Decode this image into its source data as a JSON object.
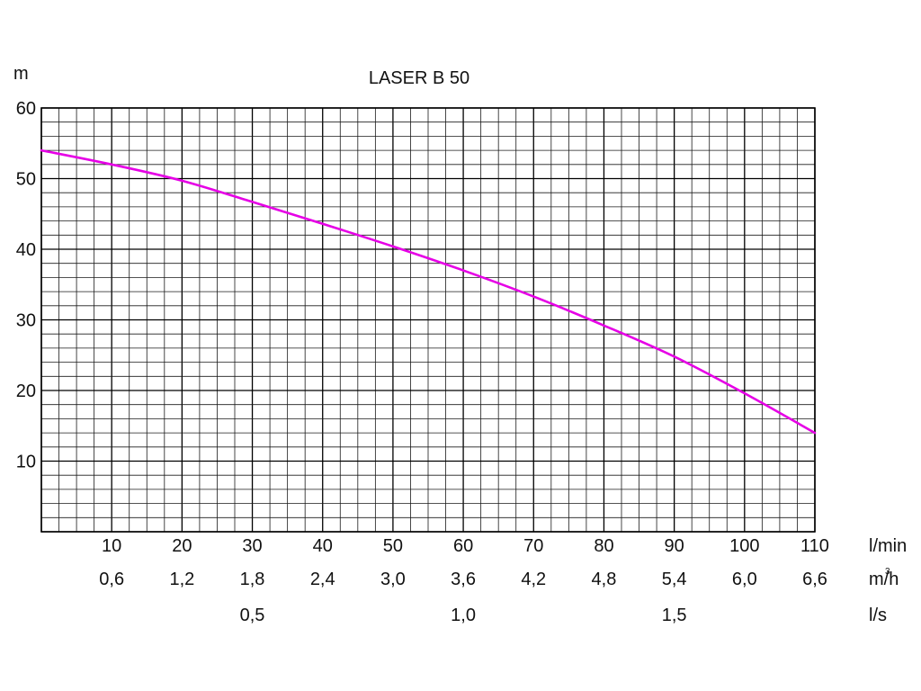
{
  "chart_data": {
    "type": "line",
    "title": "LASER B 50",
    "ylabel": "m",
    "ylim": [
      0,
      60
    ],
    "xlim": [
      0,
      110
    ],
    "grid": true,
    "y_ticks": [
      "10",
      "20",
      "30",
      "40",
      "50",
      "60"
    ],
    "x_axes": [
      {
        "unit": "l/min",
        "ticks": [
          {
            "at": 10,
            "label": "10"
          },
          {
            "at": 20,
            "label": "20"
          },
          {
            "at": 30,
            "label": "30"
          },
          {
            "at": 40,
            "label": "40"
          },
          {
            "at": 50,
            "label": "50"
          },
          {
            "at": 60,
            "label": "60"
          },
          {
            "at": 70,
            "label": "70"
          },
          {
            "at": 80,
            "label": "80"
          },
          {
            "at": 90,
            "label": "90"
          },
          {
            "at": 100,
            "label": "100"
          },
          {
            "at": 110,
            "label": "110"
          }
        ]
      },
      {
        "unit": "m/h",
        "unit_superscript": "3",
        "ticks": [
          {
            "at": 10,
            "label": "0,6"
          },
          {
            "at": 20,
            "label": "1,2"
          },
          {
            "at": 30,
            "label": "1,8"
          },
          {
            "at": 40,
            "label": "2,4"
          },
          {
            "at": 50,
            "label": "3,0"
          },
          {
            "at": 60,
            "label": "3,6"
          },
          {
            "at": 70,
            "label": "4,2"
          },
          {
            "at": 80,
            "label": "4,8"
          },
          {
            "at": 90,
            "label": "5,4"
          },
          {
            "at": 100,
            "label": "6,0"
          },
          {
            "at": 110,
            "label": "6,6"
          }
        ]
      },
      {
        "unit": "l/s",
        "ticks": [
          {
            "at": 30,
            "label": "0,5"
          },
          {
            "at": 60,
            "label": "1,0"
          },
          {
            "at": 90,
            "label": "1,5"
          }
        ]
      }
    ],
    "series": [
      {
        "color": "#e600e6",
        "x": [
          0,
          10,
          20,
          30,
          40,
          50,
          60,
          70,
          80,
          90,
          100,
          110
        ],
        "y": [
          54,
          52,
          49.7,
          46.7,
          43.6,
          40.4,
          37,
          33.3,
          29.2,
          24.8,
          19.6,
          14
        ]
      }
    ]
  }
}
